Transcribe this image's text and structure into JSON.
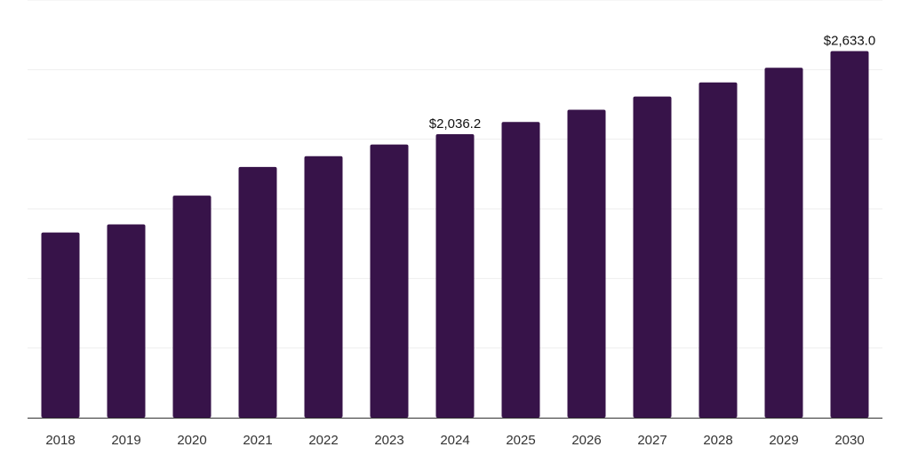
{
  "chart_data": {
    "type": "bar",
    "categories": [
      "2018",
      "2019",
      "2020",
      "2021",
      "2022",
      "2023",
      "2024",
      "2025",
      "2026",
      "2027",
      "2028",
      "2029",
      "2030"
    ],
    "values": [
      1330,
      1388,
      1595,
      1801,
      1878,
      1962,
      2036.2,
      2124,
      2212,
      2307,
      2408,
      2513,
      2633.0
    ],
    "data_labels": [
      "",
      "",
      "",
      "",
      "",
      "",
      "$2,036.2",
      "",
      "",
      "",
      "",
      "",
      "$2,633.0"
    ],
    "title": "",
    "xlabel": "",
    "ylabel": "",
    "ylim": [
      0,
      3000
    ],
    "grid": true,
    "legend": "none",
    "bar_color": "#371349"
  }
}
